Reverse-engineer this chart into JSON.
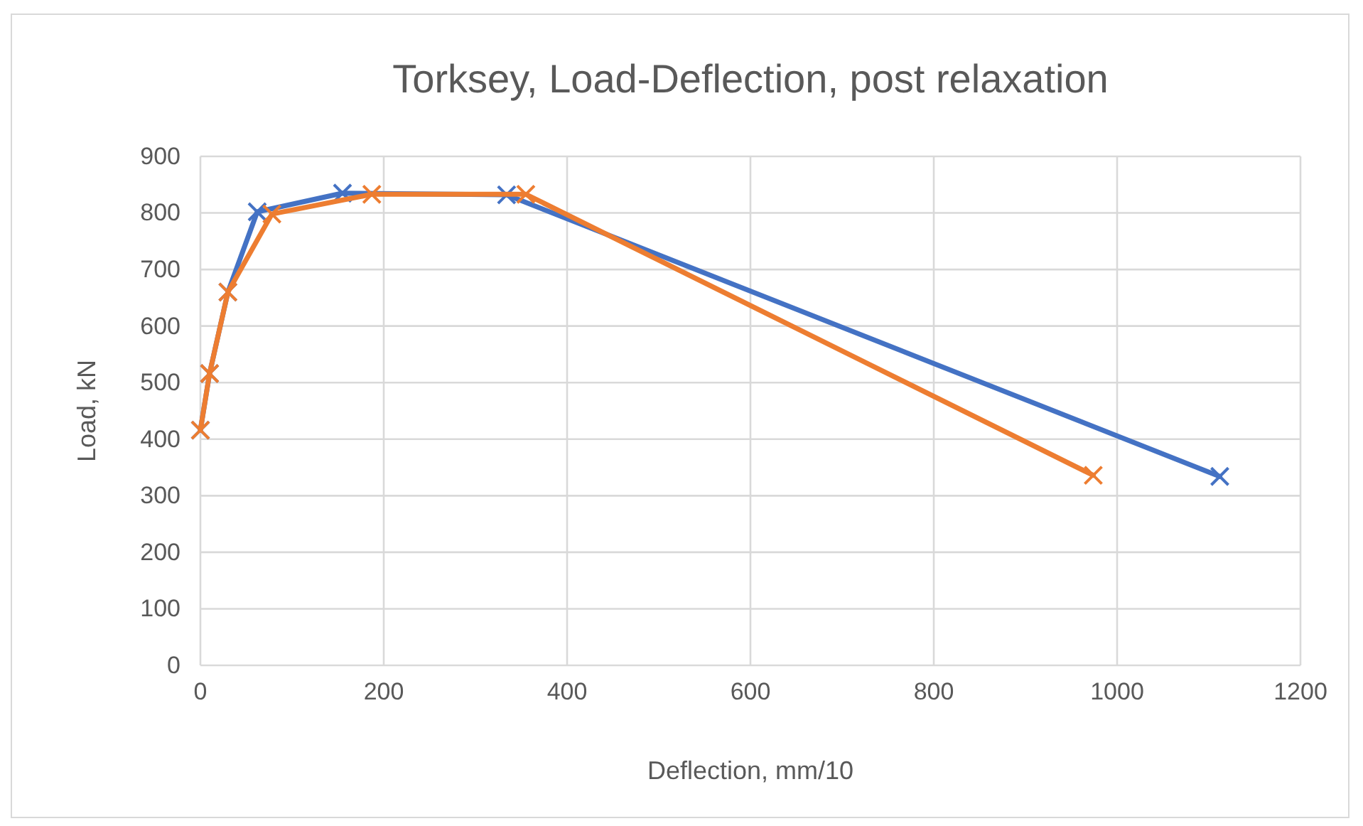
{
  "chart_data": {
    "type": "line",
    "title": "Torksey, Load-Deflection, post relaxation",
    "xlabel": "Deflection, mm/10",
    "ylabel": "Load, kN",
    "xlim": [
      0,
      1200
    ],
    "xticks": [
      0,
      200,
      400,
      600,
      800,
      1000,
      1200
    ],
    "ylim": [
      0,
      900
    ],
    "yticks": [
      0,
      100,
      200,
      300,
      400,
      500,
      600,
      700,
      800,
      900
    ],
    "grid": true,
    "marker": "cross",
    "line_style": "solid",
    "series": [
      {
        "color": "#4472c4",
        "x": [
          0,
          10,
          30,
          62,
          155,
          334,
          1112
        ],
        "values": [
          416,
          516,
          660,
          802,
          835,
          832,
          334
        ]
      },
      {
        "color": "#ed7d31",
        "x": [
          0,
          10,
          30,
          78,
          187,
          355,
          974
        ],
        "values": [
          416,
          516,
          660,
          798,
          833,
          833,
          336
        ]
      }
    ]
  }
}
